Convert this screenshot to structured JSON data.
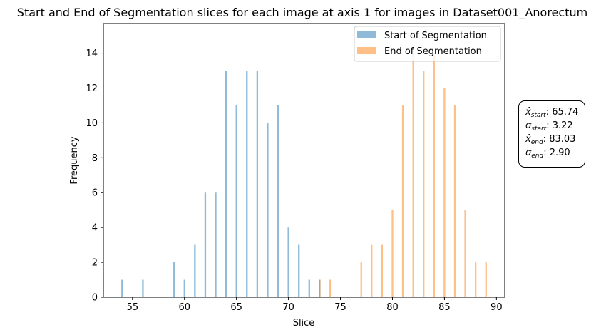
{
  "chart_data": {
    "type": "bar",
    "title": "Start and End of Segmentation slices for each image at axis 1 for images in Dataset001_Anorectum",
    "xlabel": "Slice",
    "ylabel": "Frequency",
    "xlim": [
      52.2,
      90.8
    ],
    "ylim": [
      0,
      15.7
    ],
    "xticks": [
      55,
      60,
      65,
      70,
      75,
      80,
      85,
      90
    ],
    "yticks": [
      0,
      2,
      4,
      6,
      8,
      10,
      12,
      14
    ],
    "grid": false,
    "legend_position": "top-right",
    "series": [
      {
        "name": "Start of Segmentation",
        "color": "#1f77b4",
        "points": [
          {
            "x": 54,
            "y": 1
          },
          {
            "x": 56,
            "y": 1
          },
          {
            "x": 59,
            "y": 2
          },
          {
            "x": 60,
            "y": 1
          },
          {
            "x": 61,
            "y": 3
          },
          {
            "x": 62,
            "y": 6
          },
          {
            "x": 63,
            "y": 6
          },
          {
            "x": 64,
            "y": 13
          },
          {
            "x": 65,
            "y": 11
          },
          {
            "x": 66,
            "y": 13
          },
          {
            "x": 67,
            "y": 13
          },
          {
            "x": 68,
            "y": 10
          },
          {
            "x": 69,
            "y": 11
          },
          {
            "x": 70,
            "y": 4
          },
          {
            "x": 71,
            "y": 3
          },
          {
            "x": 72,
            "y": 1
          },
          {
            "x": 73,
            "y": 1
          }
        ]
      },
      {
        "name": "End of Segmentation",
        "color": "#ff7f0e",
        "points": [
          {
            "x": 73,
            "y": 1
          },
          {
            "x": 74,
            "y": 1
          },
          {
            "x": 77,
            "y": 2
          },
          {
            "x": 78,
            "y": 3
          },
          {
            "x": 79,
            "y": 3
          },
          {
            "x": 80,
            "y": 5
          },
          {
            "x": 81,
            "y": 11
          },
          {
            "x": 82,
            "y": 14
          },
          {
            "x": 83,
            "y": 13
          },
          {
            "x": 84,
            "y": 14
          },
          {
            "x": 85,
            "y": 12
          },
          {
            "x": 86,
            "y": 11
          },
          {
            "x": 87,
            "y": 5
          },
          {
            "x": 88,
            "y": 2
          },
          {
            "x": 89,
            "y": 2
          }
        ]
      }
    ],
    "annotation": {
      "start_mean_symbol": "x̂",
      "start_mean_sub": "start",
      "start_mean": "65.74",
      "start_std_symbol": "σ",
      "start_std_sub": "start",
      "start_std": "3.22",
      "end_mean_symbol": "x̂",
      "end_mean_sub": "end",
      "end_mean": "83.03",
      "end_std_symbol": "σ",
      "end_std_sub": "end",
      "end_std": "2.90"
    }
  }
}
